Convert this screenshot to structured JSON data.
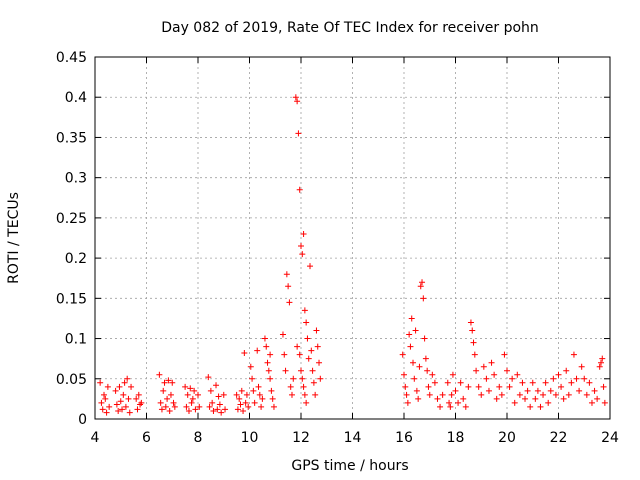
{
  "chart_data": {
    "type": "scatter",
    "title": "Day 082 of 2019, Rate Of TEC Index for receiver pohn",
    "xlabel": "GPS time / hours",
    "ylabel": "ROTI / TECUs",
    "xlim": [
      4,
      24
    ],
    "ylim": [
      0,
      0.45
    ],
    "x_ticks": [
      4,
      6,
      8,
      10,
      12,
      14,
      16,
      18,
      20,
      22,
      24
    ],
    "x_tick_labels": [
      "4",
      "6",
      "8",
      "10",
      "12",
      "14",
      "16",
      "18",
      "20",
      "22",
      "24"
    ],
    "y_ticks": [
      0,
      0.05,
      0.1,
      0.15,
      0.2,
      0.25,
      0.3,
      0.35,
      0.4,
      0.45
    ],
    "y_tick_labels": [
      "0",
      "0.05",
      "0.1",
      "0.15",
      "0.2",
      "0.25",
      "0.3",
      "0.35",
      "0.4",
      "0.45"
    ],
    "grid": true,
    "marker": "+",
    "marker_color": "#ff0000",
    "series": [
      {
        "name": "ROTI",
        "color": "#ff0000",
        "points": [
          [
            4.2,
            0.045
          ],
          [
            4.25,
            0.02
          ],
          [
            4.3,
            0.012
          ],
          [
            4.35,
            0.03
          ],
          [
            4.4,
            0.025
          ],
          [
            4.45,
            0.008
          ],
          [
            4.5,
            0.04
          ],
          [
            4.55,
            0.015
          ],
          [
            4.8,
            0.035
          ],
          [
            4.85,
            0.018
          ],
          [
            4.9,
            0.01
          ],
          [
            4.95,
            0.04
          ],
          [
            5.0,
            0.022
          ],
          [
            5.05,
            0.012
          ],
          [
            5.1,
            0.03
          ],
          [
            5.15,
            0.045
          ],
          [
            5.2,
            0.015
          ],
          [
            5.25,
            0.05
          ],
          [
            5.3,
            0.025
          ],
          [
            5.35,
            0.008
          ],
          [
            5.4,
            0.04
          ],
          [
            5.6,
            0.025
          ],
          [
            5.65,
            0.012
          ],
          [
            5.7,
            0.03
          ],
          [
            5.75,
            0.018
          ],
          [
            5.8,
            0.02
          ],
          [
            6.5,
            0.055
          ],
          [
            6.55,
            0.02
          ],
          [
            6.6,
            0.012
          ],
          [
            6.65,
            0.035
          ],
          [
            6.7,
            0.045
          ],
          [
            6.75,
            0.015
          ],
          [
            6.8,
            0.025
          ],
          [
            6.85,
            0.048
          ],
          [
            6.9,
            0.01
          ],
          [
            6.95,
            0.03
          ],
          [
            7.0,
            0.045
          ],
          [
            7.05,
            0.02
          ],
          [
            7.1,
            0.015
          ],
          [
            7.5,
            0.04
          ],
          [
            7.55,
            0.015
          ],
          [
            7.6,
            0.03
          ],
          [
            7.65,
            0.01
          ],
          [
            7.7,
            0.038
          ],
          [
            7.75,
            0.02
          ],
          [
            7.8,
            0.025
          ],
          [
            7.85,
            0.035
          ],
          [
            7.9,
            0.012
          ],
          [
            8.0,
            0.03
          ],
          [
            8.05,
            0.015
          ],
          [
            8.4,
            0.052
          ],
          [
            8.45,
            0.015
          ],
          [
            8.5,
            0.035
          ],
          [
            8.55,
            0.02
          ],
          [
            8.6,
            0.01
          ],
          [
            8.7,
            0.042
          ],
          [
            8.75,
            0.012
          ],
          [
            8.8,
            0.028
          ],
          [
            8.85,
            0.018
          ],
          [
            8.9,
            0.008
          ],
          [
            9.0,
            0.03
          ],
          [
            9.05,
            0.012
          ],
          [
            9.5,
            0.03
          ],
          [
            9.55,
            0.012
          ],
          [
            9.6,
            0.025
          ],
          [
            9.65,
            0.018
          ],
          [
            9.7,
            0.035
          ],
          [
            9.75,
            0.01
          ],
          [
            9.8,
            0.082
          ],
          [
            9.85,
            0.02
          ],
          [
            9.9,
            0.03
          ],
          [
            9.95,
            0.015
          ],
          [
            10.05,
            0.065
          ],
          [
            10.1,
            0.05
          ],
          [
            10.15,
            0.035
          ],
          [
            10.2,
            0.02
          ],
          [
            10.3,
            0.085
          ],
          [
            10.35,
            0.04
          ],
          [
            10.4,
            0.03
          ],
          [
            10.45,
            0.015
          ],
          [
            10.5,
            0.025
          ],
          [
            10.6,
            0.1
          ],
          [
            10.65,
            0.09
          ],
          [
            10.7,
            0.07
          ],
          [
            10.75,
            0.06
          ],
          [
            10.8,
            0.05
          ],
          [
            10.85,
            0.035
          ],
          [
            10.9,
            0.025
          ],
          [
            10.95,
            0.015
          ],
          [
            10.8,
            0.08
          ],
          [
            11.3,
            0.105
          ],
          [
            11.35,
            0.08
          ],
          [
            11.4,
            0.06
          ],
          [
            11.45,
            0.18
          ],
          [
            11.5,
            0.165
          ],
          [
            11.55,
            0.145
          ],
          [
            11.6,
            0.04
          ],
          [
            11.65,
            0.03
          ],
          [
            11.7,
            0.05
          ],
          [
            11.8,
            0.4
          ],
          [
            11.85,
            0.395
          ],
          [
            11.9,
            0.355
          ],
          [
            11.95,
            0.285
          ],
          [
            12.0,
            0.215
          ],
          [
            12.05,
            0.205
          ],
          [
            12.1,
            0.23
          ],
          [
            12.15,
            0.135
          ],
          [
            12.2,
            0.12
          ],
          [
            12.25,
            0.1
          ],
          [
            11.85,
            0.09
          ],
          [
            11.95,
            0.08
          ],
          [
            12.0,
            0.06
          ],
          [
            12.05,
            0.05
          ],
          [
            12.1,
            0.04
          ],
          [
            12.15,
            0.03
          ],
          [
            12.2,
            0.02
          ],
          [
            12.3,
            0.075
          ],
          [
            12.35,
            0.19
          ],
          [
            12.4,
            0.085
          ],
          [
            12.45,
            0.06
          ],
          [
            12.5,
            0.045
          ],
          [
            12.55,
            0.03
          ],
          [
            12.6,
            0.11
          ],
          [
            12.65,
            0.09
          ],
          [
            12.7,
            0.07
          ],
          [
            12.75,
            0.05
          ],
          [
            15.95,
            0.08
          ],
          [
            16.0,
            0.055
          ],
          [
            16.05,
            0.04
          ],
          [
            16.1,
            0.03
          ],
          [
            16.15,
            0.02
          ],
          [
            16.2,
            0.105
          ],
          [
            16.25,
            0.09
          ],
          [
            16.3,
            0.125
          ],
          [
            16.35,
            0.07
          ],
          [
            16.4,
            0.05
          ],
          [
            16.45,
            0.11
          ],
          [
            16.5,
            0.035
          ],
          [
            16.55,
            0.025
          ],
          [
            16.6,
            0.065
          ],
          [
            16.65,
            0.165
          ],
          [
            16.7,
            0.17
          ],
          [
            16.75,
            0.15
          ],
          [
            16.8,
            0.1
          ],
          [
            16.85,
            0.075
          ],
          [
            16.9,
            0.06
          ],
          [
            16.95,
            0.04
          ],
          [
            17.0,
            0.03
          ],
          [
            17.1,
            0.055
          ],
          [
            17.2,
            0.045
          ],
          [
            17.3,
            0.025
          ],
          [
            17.4,
            0.015
          ],
          [
            17.5,
            0.03
          ],
          [
            17.7,
            0.045
          ],
          [
            17.75,
            0.02
          ],
          [
            17.8,
            0.015
          ],
          [
            17.85,
            0.03
          ],
          [
            17.9,
            0.055
          ],
          [
            18.0,
            0.035
          ],
          [
            18.1,
            0.02
          ],
          [
            18.2,
            0.045
          ],
          [
            18.3,
            0.025
          ],
          [
            18.4,
            0.015
          ],
          [
            18.5,
            0.04
          ],
          [
            18.6,
            0.12
          ],
          [
            18.65,
            0.11
          ],
          [
            18.7,
            0.095
          ],
          [
            18.75,
            0.08
          ],
          [
            18.8,
            0.06
          ],
          [
            18.9,
            0.04
          ],
          [
            19.0,
            0.03
          ],
          [
            19.1,
            0.065
          ],
          [
            19.2,
            0.05
          ],
          [
            19.3,
            0.035
          ],
          [
            19.4,
            0.07
          ],
          [
            19.5,
            0.055
          ],
          [
            19.6,
            0.025
          ],
          [
            19.7,
            0.04
          ],
          [
            19.8,
            0.03
          ],
          [
            19.9,
            0.08
          ],
          [
            20.0,
            0.06
          ],
          [
            20.1,
            0.04
          ],
          [
            20.2,
            0.05
          ],
          [
            20.3,
            0.02
          ],
          [
            20.4,
            0.055
          ],
          [
            20.5,
            0.03
          ],
          [
            20.6,
            0.045
          ],
          [
            20.7,
            0.025
          ],
          [
            20.8,
            0.035
          ],
          [
            20.9,
            0.015
          ],
          [
            21.0,
            0.045
          ],
          [
            21.1,
            0.025
          ],
          [
            21.2,
            0.035
          ],
          [
            21.3,
            0.015
          ],
          [
            21.4,
            0.03
          ],
          [
            21.5,
            0.045
          ],
          [
            21.6,
            0.02
          ],
          [
            21.7,
            0.035
          ],
          [
            21.8,
            0.05
          ],
          [
            21.9,
            0.03
          ],
          [
            22.0,
            0.055
          ],
          [
            22.1,
            0.04
          ],
          [
            22.2,
            0.025
          ],
          [
            22.3,
            0.06
          ],
          [
            22.4,
            0.03
          ],
          [
            22.5,
            0.045
          ],
          [
            22.6,
            0.08
          ],
          [
            22.7,
            0.05
          ],
          [
            22.8,
            0.035
          ],
          [
            22.9,
            0.065
          ],
          [
            23.0,
            0.05
          ],
          [
            23.1,
            0.03
          ],
          [
            23.2,
            0.045
          ],
          [
            23.3,
            0.02
          ],
          [
            23.4,
            0.035
          ],
          [
            23.5,
            0.025
          ],
          [
            23.6,
            0.065
          ],
          [
            23.65,
            0.07
          ],
          [
            23.7,
            0.075
          ],
          [
            23.75,
            0.04
          ],
          [
            23.8,
            0.02
          ]
        ]
      }
    ]
  }
}
